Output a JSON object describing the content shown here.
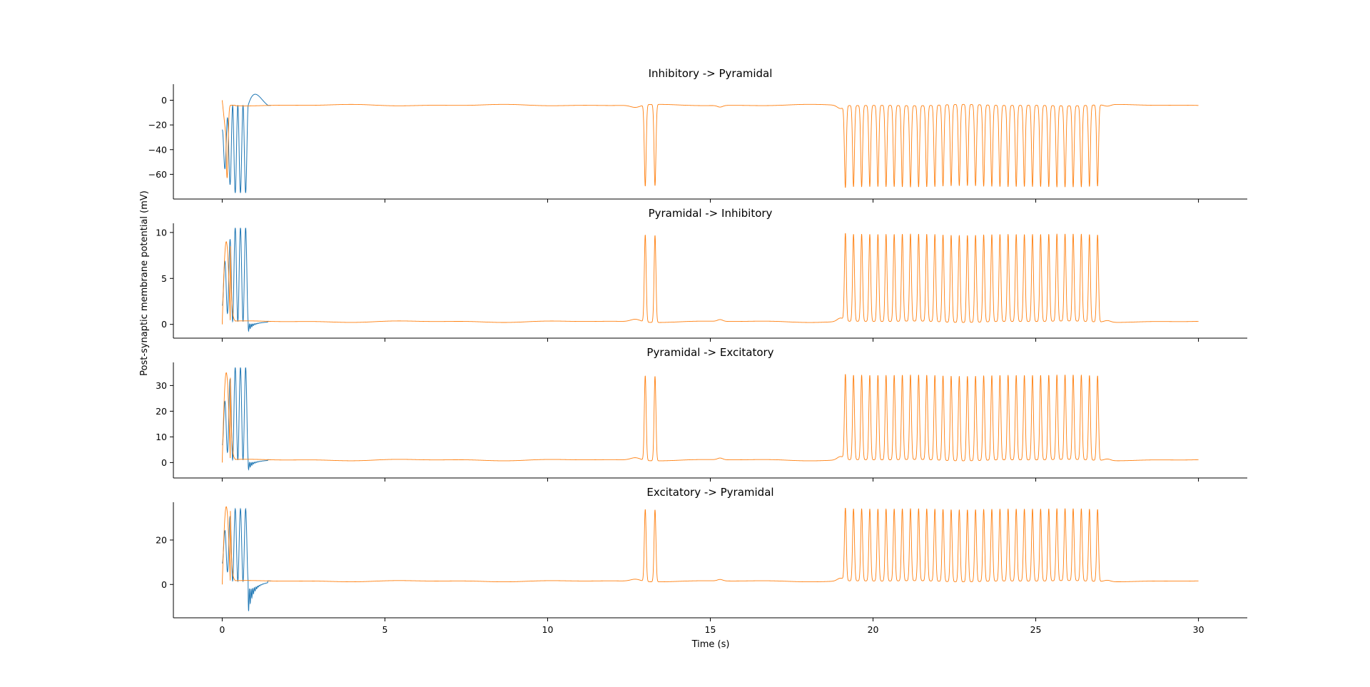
{
  "figure": {
    "ylabel": "Post-synaptic membrane potential (mV)",
    "xlabel": "Time (s)"
  },
  "colors": {
    "series_blue": "#1f77b4",
    "series_orange": "#ff7f0e"
  },
  "chart_data": [
    {
      "type": "line",
      "title": "Inhibitory -> Pyramidal",
      "xlim": [
        -1.5,
        31.5
      ],
      "ylim": [
        -80,
        13
      ],
      "yticks": [
        0,
        -20,
        -40,
        -60
      ],
      "yticklabels": [
        "0",
        "−20",
        "−40",
        "−60"
      ],
      "xticks": [
        0,
        5,
        10,
        15,
        20,
        25,
        30
      ],
      "baseline": -4,
      "spike_peak": -70,
      "direction": "down",
      "early_blue": {
        "start": -35,
        "osc_amp": -75,
        "overshoot": 8
      },
      "early_orange": {
        "start": 0,
        "min": -63
      },
      "spike_times": [
        13.0,
        13.3,
        19.15,
        19.4,
        19.65,
        19.9,
        20.15,
        20.4,
        20.65,
        20.9,
        21.15,
        21.4,
        21.65,
        21.9,
        22.15,
        22.4,
        22.65,
        22.9,
        23.15,
        23.4,
        23.65,
        23.9,
        24.15,
        24.4,
        24.65,
        24.9,
        25.15,
        25.4,
        25.65,
        25.9,
        26.15,
        26.4,
        26.65,
        26.9
      ]
    },
    {
      "type": "line",
      "title": "Pyramidal -> Inhibitory",
      "xlim": [
        -1.5,
        31.5
      ],
      "ylim": [
        -1.5,
        11
      ],
      "yticks": [
        0,
        5,
        10
      ],
      "yticklabels": [
        "0",
        "5",
        "10"
      ],
      "xticks": [
        0,
        5,
        10,
        15,
        20,
        25,
        30
      ],
      "baseline": 0.3,
      "spike_peak": 9.8,
      "direction": "up",
      "early_blue": {
        "start": 3,
        "osc_amp": 10.5,
        "undershoot": -0.8
      },
      "early_orange": {
        "start": 0,
        "max": 9
      },
      "spike_times": [
        13.0,
        13.3,
        19.15,
        19.4,
        19.65,
        19.9,
        20.15,
        20.4,
        20.65,
        20.9,
        21.15,
        21.4,
        21.65,
        21.9,
        22.15,
        22.4,
        22.65,
        22.9,
        23.15,
        23.4,
        23.65,
        23.9,
        24.15,
        24.4,
        24.65,
        24.9,
        25.15,
        25.4,
        25.65,
        25.9,
        26.15,
        26.4,
        26.65,
        26.9
      ]
    },
    {
      "type": "line",
      "title": "Pyramidal -> Excitatory",
      "xlim": [
        -1.5,
        31.5
      ],
      "ylim": [
        -6,
        39
      ],
      "yticks": [
        0,
        10,
        20,
        30
      ],
      "yticklabels": [
        "0",
        "10",
        "20",
        "30"
      ],
      "xticks": [
        0,
        5,
        10,
        15,
        20,
        25,
        30
      ],
      "baseline": 1,
      "spike_peak": 34,
      "direction": "up",
      "early_blue": {
        "start": 10,
        "osc_amp": 37,
        "undershoot": -3
      },
      "early_orange": {
        "start": 0,
        "max": 35
      },
      "spike_times": [
        13.0,
        13.3,
        19.15,
        19.4,
        19.65,
        19.9,
        20.15,
        20.4,
        20.65,
        20.9,
        21.15,
        21.4,
        21.65,
        21.9,
        22.15,
        22.4,
        22.65,
        22.9,
        23.15,
        23.4,
        23.65,
        23.9,
        24.15,
        24.4,
        24.65,
        24.9,
        25.15,
        25.4,
        25.65,
        25.9,
        26.15,
        26.4,
        26.65,
        26.9
      ]
    },
    {
      "type": "line",
      "title": "Excitatory -> Pyramidal",
      "xlim": [
        -1.5,
        31.5
      ],
      "ylim": [
        -15,
        37
      ],
      "yticks": [
        0,
        20
      ],
      "yticklabels": [
        "0",
        "20"
      ],
      "xticks": [
        0,
        5,
        10,
        15,
        20,
        25,
        30
      ],
      "xticklabels": [
        "0",
        "5",
        "10",
        "15",
        "20",
        "25",
        "30"
      ],
      "baseline": 1.5,
      "spike_peak": 34,
      "direction": "up",
      "early_blue": {
        "start": 14,
        "osc_amp": 34,
        "undershoot": -13
      },
      "early_orange": {
        "start": 0,
        "max": 35
      },
      "spike_times": [
        13.0,
        13.3,
        19.15,
        19.4,
        19.65,
        19.9,
        20.15,
        20.4,
        20.65,
        20.9,
        21.15,
        21.4,
        21.65,
        21.9,
        22.15,
        22.4,
        22.65,
        22.9,
        23.15,
        23.4,
        23.65,
        23.9,
        24.15,
        24.4,
        24.65,
        24.9,
        25.15,
        25.4,
        25.65,
        25.9,
        26.15,
        26.4,
        26.65,
        26.9
      ]
    }
  ]
}
